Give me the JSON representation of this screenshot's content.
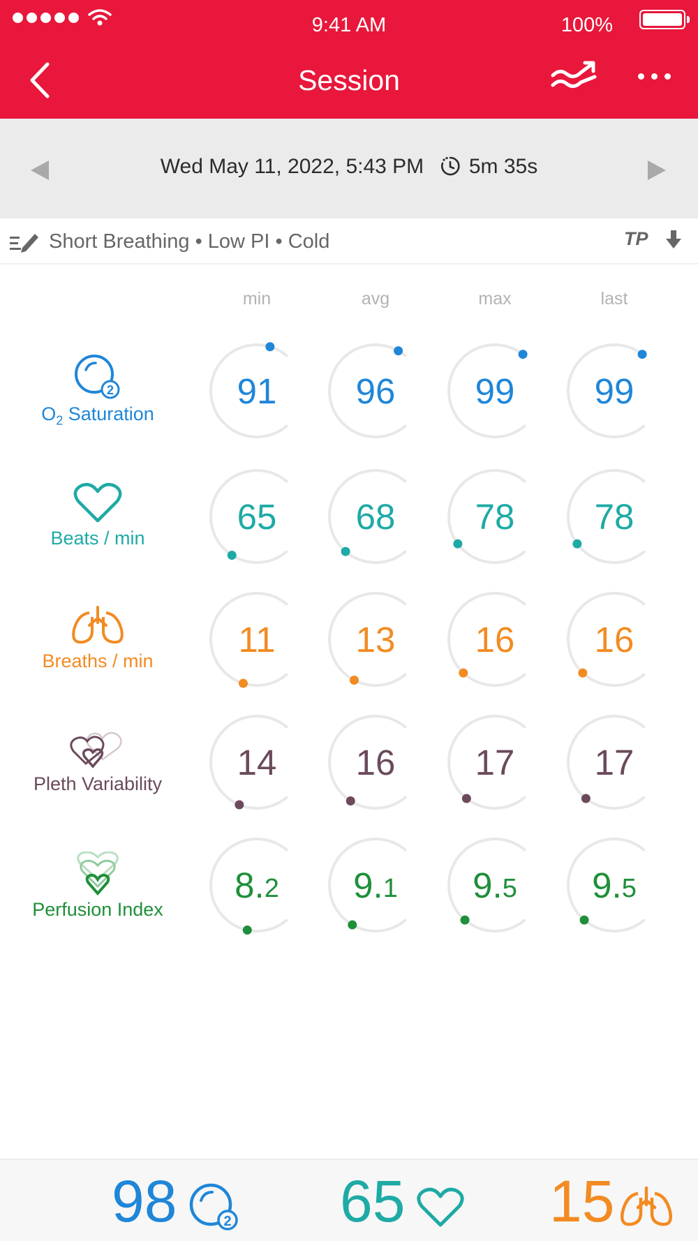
{
  "status_bar": {
    "time": "9:41 AM",
    "battery": "100%"
  },
  "header": {
    "title": "Session"
  },
  "date_bar": {
    "datetime": "Wed May 11, 2022, 5:43 PM",
    "duration": "5m 35s"
  },
  "tags": {
    "text": "Short Breathing • Low PI • Cold",
    "tp_label": "TP"
  },
  "columns": [
    "min",
    "avg",
    "max",
    "last"
  ],
  "metrics": [
    {
      "name_prefix": "O",
      "name_sub": "2",
      "name_rest": " Saturation",
      "color": "#1f86d8",
      "values": [
        "91",
        "96",
        "99",
        "99"
      ],
      "fractions": [
        0.91,
        0.96,
        0.99,
        0.99
      ]
    },
    {
      "name": "Beats / min",
      "color": "#1eaaa5",
      "values": [
        "65",
        "68",
        "78",
        "78"
      ],
      "fractions": [
        0.28,
        0.31,
        0.36,
        0.36
      ]
    },
    {
      "name": "Breaths / min",
      "color": "#f28b22",
      "values": [
        "11",
        "13",
        "16",
        "16"
      ],
      "fractions": [
        0.22,
        0.26,
        0.32,
        0.32
      ]
    },
    {
      "name": "Pleth Variability",
      "color": "#6b4a5c",
      "values": [
        "14",
        "16",
        "17",
        "17"
      ],
      "fractions": [
        0.24,
        0.28,
        0.3,
        0.3
      ]
    },
    {
      "name": "Perfusion Index",
      "color": "#1f8f3a",
      "values_int": [
        "8.",
        "9.",
        "9.",
        "9."
      ],
      "values_dec": [
        "2",
        "1",
        "5",
        "5"
      ],
      "fractions": [
        0.2,
        0.27,
        0.31,
        0.31
      ]
    }
  ],
  "bottom": {
    "spo2": {
      "value": "98",
      "color": "#1f86d8"
    },
    "pulse": {
      "value": "65",
      "color": "#1eaaa5"
    },
    "resp": {
      "value": "15",
      "color": "#f28b22"
    }
  }
}
